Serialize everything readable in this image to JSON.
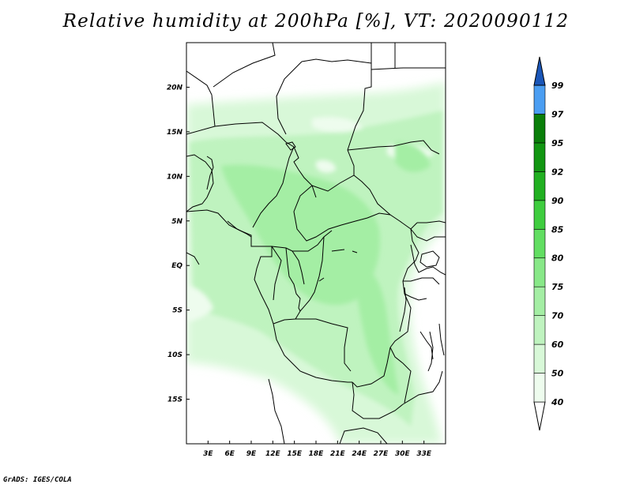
{
  "title": "Relative humidity at 200hPa [%], VT: 2020090112",
  "credit": "GrADS: IGES/COLA",
  "map": {
    "lon_range": [
      0,
      36
    ],
    "lat_range": [
      -20,
      25
    ],
    "lon_ticks": [
      {
        "value": 3,
        "label": "3E"
      },
      {
        "value": 6,
        "label": "6E"
      },
      {
        "value": 9,
        "label": "9E"
      },
      {
        "value": 12,
        "label": "12E"
      },
      {
        "value": 15,
        "label": "15E"
      },
      {
        "value": 18,
        "label": "18E"
      },
      {
        "value": 21,
        "label": "21E"
      },
      {
        "value": 24,
        "label": "24E"
      },
      {
        "value": 27,
        "label": "27E"
      },
      {
        "value": 30,
        "label": "30E"
      },
      {
        "value": 33,
        "label": "33E"
      }
    ],
    "lat_ticks": [
      {
        "value": 20,
        "label": "20N"
      },
      {
        "value": 15,
        "label": "15N"
      },
      {
        "value": 10,
        "label": "10N"
      },
      {
        "value": 5,
        "label": "5N"
      },
      {
        "value": 0,
        "label": "EQ"
      },
      {
        "value": -5,
        "label": "5S"
      },
      {
        "value": -10,
        "label": "10S"
      },
      {
        "value": -15,
        "label": "15S"
      }
    ]
  },
  "colorbar": {
    "levels": [
      {
        "label": "40",
        "color": "#eefcee"
      },
      {
        "label": "50",
        "color": "#d8f8d8"
      },
      {
        "label": "60",
        "color": "#bff3bf"
      },
      {
        "label": "70",
        "color": "#a4eea4"
      },
      {
        "label": "75",
        "color": "#88e888"
      },
      {
        "label": "80",
        "color": "#62de62"
      },
      {
        "label": "85",
        "color": "#3fcd3f"
      },
      {
        "label": "90",
        "color": "#21b021"
      },
      {
        "label": "92",
        "color": "#129612"
      },
      {
        "label": "95",
        "color": "#0a7f0a"
      },
      {
        "label": "97",
        "color": "#4b9ef2"
      },
      {
        "label": "99",
        "color": "#1f6fd8"
      }
    ],
    "top_color": "#1a56b8",
    "bottom_color": "#ffffff"
  }
}
